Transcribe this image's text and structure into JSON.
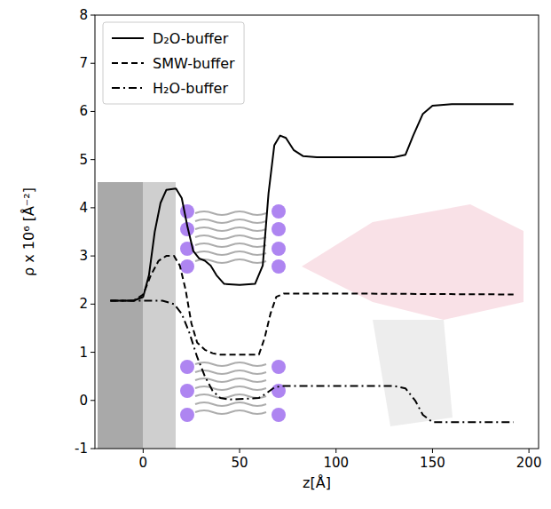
{
  "chart_data": {
    "type": "line",
    "x_label": "z[Å]",
    "y_label": "ρ x 10⁶ [Å⁻²]",
    "xlim": [
      -25,
      205
    ],
    "xticks": [
      0,
      50,
      100,
      150,
      200
    ],
    "ylim": [
      -1,
      8
    ],
    "yticks": [
      -1,
      0,
      1,
      2,
      3,
      4,
      5,
      6,
      7,
      8
    ],
    "legend": "upper left",
    "grid": false,
    "series": [
      {
        "name": "D₂O-buffer",
        "color": "#000000",
        "line_style": "solid",
        "x": [
          -17,
          -5,
          0,
          3,
          6,
          9,
          12,
          17,
          20,
          23,
          26,
          29,
          32,
          35,
          38,
          42,
          50,
          58,
          62,
          65,
          68,
          71,
          74,
          78,
          83,
          90,
          130,
          136,
          140,
          145,
          150,
          160,
          192
        ],
        "values": [
          2.07,
          2.07,
          2.15,
          2.6,
          3.5,
          4.1,
          4.37,
          4.4,
          4.2,
          3.6,
          3.1,
          2.95,
          2.9,
          2.8,
          2.6,
          2.42,
          2.4,
          2.42,
          2.8,
          4.3,
          5.3,
          5.5,
          5.45,
          5.2,
          5.07,
          5.05,
          5.05,
          5.1,
          5.5,
          5.95,
          6.12,
          6.15,
          6.15
        ]
      },
      {
        "name": "SMW-buffer",
        "color": "#000000",
        "line_style": "dashed",
        "x": [
          -17,
          -5,
          0,
          4,
          8,
          12,
          16,
          19,
          22,
          25,
          28,
          32,
          36,
          40,
          60,
          63,
          66,
          69,
          73,
          100,
          192
        ],
        "values": [
          2.07,
          2.07,
          2.2,
          2.6,
          2.9,
          3.0,
          3.0,
          2.8,
          2.3,
          1.6,
          1.2,
          1.05,
          0.98,
          0.95,
          0.95,
          1.3,
          1.8,
          2.15,
          2.22,
          2.22,
          2.2
        ]
      },
      {
        "name": "H₂O-buffer",
        "color": "#000000",
        "line_style": "dashdot",
        "x": [
          -17,
          10,
          16,
          20,
          24,
          28,
          32,
          36,
          40,
          45,
          60,
          64,
          68,
          72,
          100,
          130,
          136,
          141,
          145,
          150,
          192
        ],
        "values": [
          2.07,
          2.07,
          2.0,
          1.8,
          1.4,
          0.9,
          0.5,
          0.2,
          0.05,
          0.02,
          0.05,
          0.15,
          0.27,
          0.3,
          0.3,
          0.3,
          0.25,
          0.0,
          -0.3,
          -0.45,
          -0.45
        ]
      }
    ]
  }
}
